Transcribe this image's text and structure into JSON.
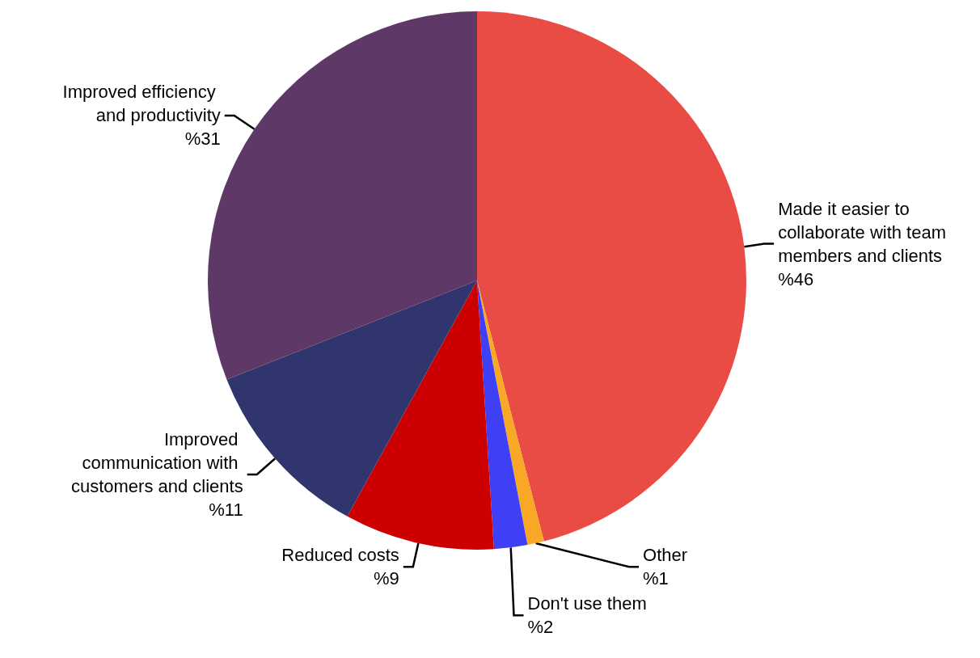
{
  "chart_data": {
    "type": "pie",
    "categories": [
      "Made it easier to collaborate with team members and clients",
      "Other",
      "Don't use them",
      "Reduced costs",
      "Improved communication with customers and clients",
      "Improved efficiency and productivity"
    ],
    "values": [
      46,
      1,
      2,
      9,
      11,
      31
    ],
    "value_labels": [
      "%46",
      "%1",
      "%2",
      "%9",
      "%11",
      "%31"
    ],
    "colors": [
      "#e84c45",
      "#f9a825",
      "#3f3ff5",
      "#cc0000",
      "#30356e",
      "#5e3866"
    ],
    "legend": false
  }
}
